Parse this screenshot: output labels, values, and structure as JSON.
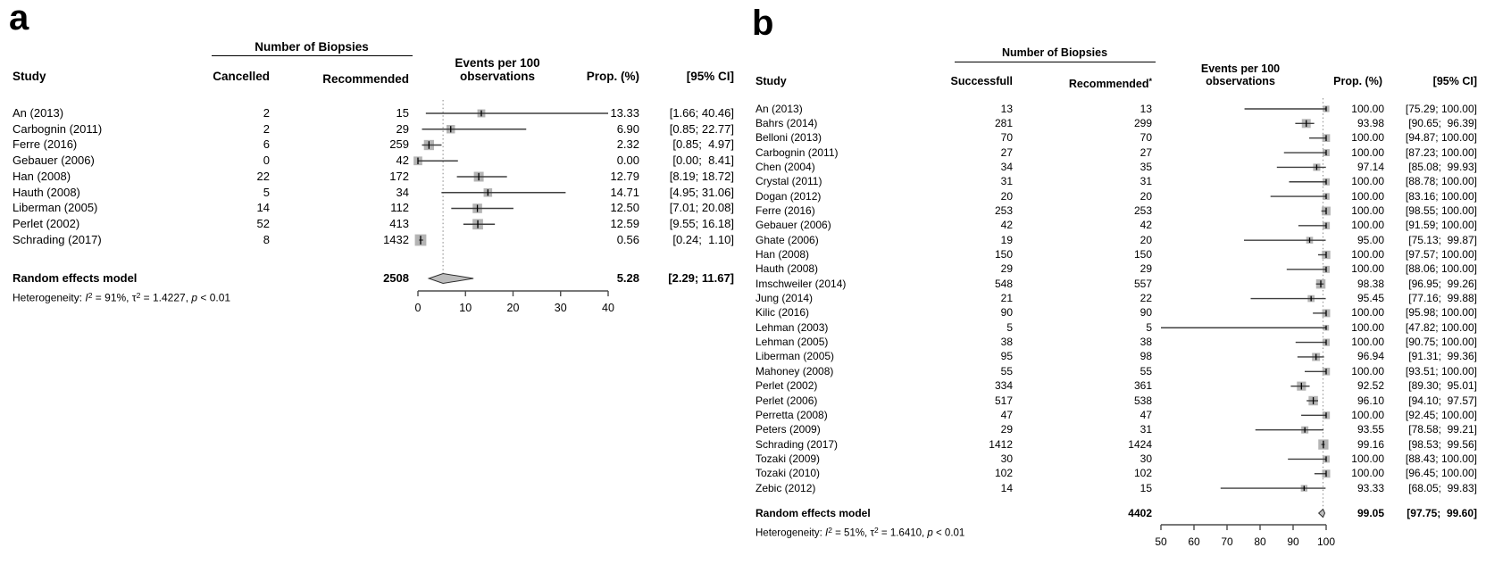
{
  "colors": {
    "square": "#b4b4b4",
    "ci_line": "#3f3f3f",
    "marker": "#000000",
    "axis": "#4b4b4b",
    "ref_line": "#9a9a9a",
    "diamond_fill": "#bdbdbd",
    "diamond_stroke": "#2f2f2f",
    "text": "#000000"
  },
  "chart_data": [
    {
      "type": "scatter",
      "subtype": "forest-plot",
      "panel_label": "a",
      "columns": {
        "group": "Number of Biopsies",
        "study": "Study",
        "n1": "Cancelled",
        "n2": "Recommended",
        "n2_sup": "",
        "events_line1": "Events per 100",
        "events_line2": "observations",
        "prop": "Prop. (%)",
        "ci": "[95% CI]"
      },
      "xaxis": {
        "min": 0,
        "max": 40,
        "ticks": [
          0,
          10,
          20,
          30,
          40
        ]
      },
      "ref_line": 5.28,
      "studies": [
        {
          "name": "An (2013)",
          "n1": "2",
          "n2": "15",
          "prop": 13.33,
          "ci_low": 1.66,
          "ci_high": 40.46,
          "prop_text": "13.33",
          "ci_text": "[1.66; 40.46]"
        },
        {
          "name": "Carbognin (2011)",
          "n1": "2",
          "n2": "29",
          "prop": 6.9,
          "ci_low": 0.85,
          "ci_high": 22.77,
          "prop_text": "6.90",
          "ci_text": "[0.85; 22.77]"
        },
        {
          "name": "Ferre (2016)",
          "n1": "6",
          "n2": "259",
          "prop": 2.32,
          "ci_low": 0.85,
          "ci_high": 4.97,
          "prop_text": "2.32",
          "ci_text": "[0.85;  4.97]"
        },
        {
          "name": "Gebauer (2006)",
          "n1": "0",
          "n2": "42",
          "prop": 0.0,
          "ci_low": 0.0,
          "ci_high": 8.41,
          "prop_text": "0.00",
          "ci_text": "[0.00;  8.41]"
        },
        {
          "name": "Han (2008)",
          "n1": "22",
          "n2": "172",
          "prop": 12.79,
          "ci_low": 8.19,
          "ci_high": 18.72,
          "prop_text": "12.79",
          "ci_text": "[8.19; 18.72]"
        },
        {
          "name": "Hauth (2008)",
          "n1": "5",
          "n2": "34",
          "prop": 14.71,
          "ci_low": 4.95,
          "ci_high": 31.06,
          "prop_text": "14.71",
          "ci_text": "[4.95; 31.06]"
        },
        {
          "name": "Liberman (2005)",
          "n1": "14",
          "n2": "112",
          "prop": 12.5,
          "ci_low": 7.01,
          "ci_high": 20.08,
          "prop_text": "12.50",
          "ci_text": "[7.01; 20.08]"
        },
        {
          "name": "Perlet (2002)",
          "n1": "52",
          "n2": "413",
          "prop": 12.59,
          "ci_low": 9.55,
          "ci_high": 16.18,
          "prop_text": "12.59",
          "ci_text": "[9.55; 16.18]"
        },
        {
          "name": "Schrading (2017)",
          "n1": "8",
          "n2": "1432",
          "prop": 0.56,
          "ci_low": 0.24,
          "ci_high": 1.1,
          "prop_text": "0.56",
          "ci_text": "[0.24;  1.10]"
        }
      ],
      "pooled": {
        "label": "Random effects model",
        "total": "2508",
        "prop": 5.28,
        "ci_low": 2.29,
        "ci_high": 11.67,
        "prop_text": "5.28",
        "ci_text": "[2.29; 11.67]"
      },
      "heterogeneity": {
        "segments": [
          {
            "t": "Heterogeneity: "
          },
          {
            "t": "I",
            "style": "i"
          },
          {
            "t": "2",
            "style": "sup"
          },
          {
            "t": " = 91%, τ"
          },
          {
            "t": "2",
            "style": "sup"
          },
          {
            "t": " = 1.4227, "
          },
          {
            "t": "p",
            "style": "i"
          },
          {
            "t": " < 0.01"
          }
        ]
      }
    },
    {
      "type": "scatter",
      "subtype": "forest-plot",
      "panel_label": "b",
      "columns": {
        "group": "Number of Biopsies",
        "study": "Study",
        "n1": "Successfull",
        "n2": "Recommended",
        "n2_sup": "*",
        "events_line1": "Events per 100",
        "events_line2": "observations",
        "prop": "Prop. (%)",
        "ci": "[95% CI]"
      },
      "xaxis": {
        "min": 50,
        "max": 100,
        "ticks": [
          50,
          60,
          70,
          80,
          90,
          100
        ]
      },
      "ref_line": 99.05,
      "studies": [
        {
          "name": "An (2013)",
          "n1": "13",
          "n2": "13",
          "prop": 100.0,
          "ci_low": 75.29,
          "ci_high": 100.0,
          "prop_text": "100.00",
          "ci_text": "[75.29; 100.00]"
        },
        {
          "name": "Bahrs (2014)",
          "n1": "281",
          "n2": "299",
          "prop": 93.98,
          "ci_low": 90.65,
          "ci_high": 96.39,
          "prop_text": "93.98",
          "ci_text": "[90.65;  96.39]"
        },
        {
          "name": "Belloni (2013)",
          "n1": "70",
          "n2": "70",
          "prop": 100.0,
          "ci_low": 94.87,
          "ci_high": 100.0,
          "prop_text": "100.00",
          "ci_text": "[94.87; 100.00]"
        },
        {
          "name": "Carbognin (2011)",
          "n1": "27",
          "n2": "27",
          "prop": 100.0,
          "ci_low": 87.23,
          "ci_high": 100.0,
          "prop_text": "100.00",
          "ci_text": "[87.23; 100.00]"
        },
        {
          "name": "Chen (2004)",
          "n1": "34",
          "n2": "35",
          "prop": 97.14,
          "ci_low": 85.08,
          "ci_high": 99.93,
          "prop_text": "97.14",
          "ci_text": "[85.08;  99.93]"
        },
        {
          "name": "Crystal (2011)",
          "n1": "31",
          "n2": "31",
          "prop": 100.0,
          "ci_low": 88.78,
          "ci_high": 100.0,
          "prop_text": "100.00",
          "ci_text": "[88.78; 100.00]"
        },
        {
          "name": "Dogan (2012)",
          "n1": "20",
          "n2": "20",
          "prop": 100.0,
          "ci_low": 83.16,
          "ci_high": 100.0,
          "prop_text": "100.00",
          "ci_text": "[83.16; 100.00]"
        },
        {
          "name": "Ferre (2016)",
          "n1": "253",
          "n2": "253",
          "prop": 100.0,
          "ci_low": 98.55,
          "ci_high": 100.0,
          "prop_text": "100.00",
          "ci_text": "[98.55; 100.00]"
        },
        {
          "name": "Gebauer (2006)",
          "n1": "42",
          "n2": "42",
          "prop": 100.0,
          "ci_low": 91.59,
          "ci_high": 100.0,
          "prop_text": "100.00",
          "ci_text": "[91.59; 100.00]"
        },
        {
          "name": "Ghate (2006)",
          "n1": "19",
          "n2": "20",
          "prop": 95.0,
          "ci_low": 75.13,
          "ci_high": 99.87,
          "prop_text": "95.00",
          "ci_text": "[75.13;  99.87]"
        },
        {
          "name": "Han (2008)",
          "n1": "150",
          "n2": "150",
          "prop": 100.0,
          "ci_low": 97.57,
          "ci_high": 100.0,
          "prop_text": "100.00",
          "ci_text": "[97.57; 100.00]"
        },
        {
          "name": "Hauth (2008)",
          "n1": "29",
          "n2": "29",
          "prop": 100.0,
          "ci_low": 88.06,
          "ci_high": 100.0,
          "prop_text": "100.00",
          "ci_text": "[88.06; 100.00]"
        },
        {
          "name": "Imschweiler (2014)",
          "n1": "548",
          "n2": "557",
          "prop": 98.38,
          "ci_low": 96.95,
          "ci_high": 99.26,
          "prop_text": "98.38",
          "ci_text": "[96.95;  99.26]"
        },
        {
          "name": "Jung (2014)",
          "n1": "21",
          "n2": "22",
          "prop": 95.45,
          "ci_low": 77.16,
          "ci_high": 99.88,
          "prop_text": "95.45",
          "ci_text": "[77.16;  99.88]"
        },
        {
          "name": "Kilic (2016)",
          "n1": "90",
          "n2": "90",
          "prop": 100.0,
          "ci_low": 95.98,
          "ci_high": 100.0,
          "prop_text": "100.00",
          "ci_text": "[95.98; 100.00]"
        },
        {
          "name": "Lehman (2003)",
          "n1": "5",
          "n2": "5",
          "prop": 100.0,
          "ci_low": 47.82,
          "ci_high": 100.0,
          "prop_text": "100.00",
          "ci_text": "[47.82; 100.00]"
        },
        {
          "name": "Lehman (2005)",
          "n1": "38",
          "n2": "38",
          "prop": 100.0,
          "ci_low": 90.75,
          "ci_high": 100.0,
          "prop_text": "100.00",
          "ci_text": "[90.75; 100.00]"
        },
        {
          "name": "Liberman (2005)",
          "n1": "95",
          "n2": "98",
          "prop": 96.94,
          "ci_low": 91.31,
          "ci_high": 99.36,
          "prop_text": "96.94",
          "ci_text": "[91.31;  99.36]"
        },
        {
          "name": "Mahoney (2008)",
          "n1": "55",
          "n2": "55",
          "prop": 100.0,
          "ci_low": 93.51,
          "ci_high": 100.0,
          "prop_text": "100.00",
          "ci_text": "[93.51; 100.00]"
        },
        {
          "name": "Perlet (2002)",
          "n1": "334",
          "n2": "361",
          "prop": 92.52,
          "ci_low": 89.3,
          "ci_high": 95.01,
          "prop_text": "92.52",
          "ci_text": "[89.30;  95.01]"
        },
        {
          "name": "Perlet (2006)",
          "n1": "517",
          "n2": "538",
          "prop": 96.1,
          "ci_low": 94.1,
          "ci_high": 97.57,
          "prop_text": "96.10",
          "ci_text": "[94.10;  97.57]"
        },
        {
          "name": "Perretta (2008)",
          "n1": "47",
          "n2": "47",
          "prop": 100.0,
          "ci_low": 92.45,
          "ci_high": 100.0,
          "prop_text": "100.00",
          "ci_text": "[92.45; 100.00]"
        },
        {
          "name": "Peters (2009)",
          "n1": "29",
          "n2": "31",
          "prop": 93.55,
          "ci_low": 78.58,
          "ci_high": 99.21,
          "prop_text": "93.55",
          "ci_text": "[78.58;  99.21]"
        },
        {
          "name": "Schrading (2017)",
          "n1": "1412",
          "n2": "1424",
          "prop": 99.16,
          "ci_low": 98.53,
          "ci_high": 99.56,
          "prop_text": "99.16",
          "ci_text": "[98.53;  99.56]"
        },
        {
          "name": "Tozaki (2009)",
          "n1": "30",
          "n2": "30",
          "prop": 100.0,
          "ci_low": 88.43,
          "ci_high": 100.0,
          "prop_text": "100.00",
          "ci_text": "[88.43; 100.00]"
        },
        {
          "name": "Tozaki (2010)",
          "n1": "102",
          "n2": "102",
          "prop": 100.0,
          "ci_low": 96.45,
          "ci_high": 100.0,
          "prop_text": "100.00",
          "ci_text": "[96.45; 100.00]"
        },
        {
          "name": "Zebic (2012)",
          "n1": "14",
          "n2": "15",
          "prop": 93.33,
          "ci_low": 68.05,
          "ci_high": 99.83,
          "prop_text": "93.33",
          "ci_text": "[68.05;  99.83]"
        }
      ],
      "pooled": {
        "label": "Random effects model",
        "total": "4402",
        "prop": 99.05,
        "ci_low": 97.75,
        "ci_high": 99.6,
        "prop_text": "99.05",
        "ci_text": "[97.75;  99.60]"
      },
      "heterogeneity": {
        "segments": [
          {
            "t": "Heterogeneity: "
          },
          {
            "t": "I",
            "style": "i"
          },
          {
            "t": "2",
            "style": "sup"
          },
          {
            "t": " = 51%, τ"
          },
          {
            "t": "2",
            "style": "sup"
          },
          {
            "t": " = 1.6410, "
          },
          {
            "t": "p",
            "style": "i"
          },
          {
            "t": " < 0.01"
          }
        ]
      }
    }
  ]
}
